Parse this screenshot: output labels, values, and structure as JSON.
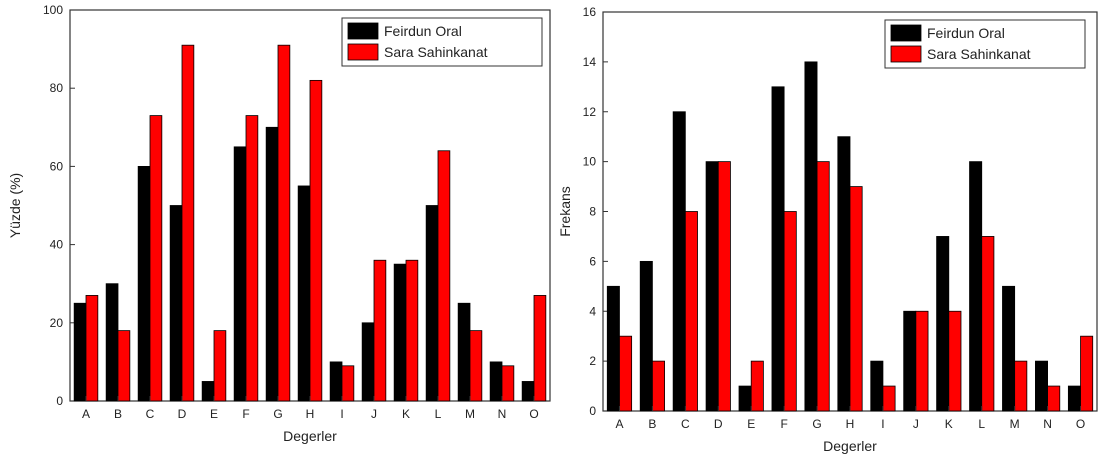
{
  "colors": {
    "series1": "#000000",
    "series2": "#ff0000",
    "axis": "#333333"
  },
  "chart_data": [
    {
      "type": "bar",
      "xlabel": "Degerler",
      "ylabel": "Yüzde (%)",
      "ylim": [
        0,
        100
      ],
      "yticks": [
        "0",
        "20",
        "40",
        "60",
        "80",
        "100"
      ],
      "categories": [
        "A",
        "B",
        "C",
        "D",
        "E",
        "F",
        "G",
        "H",
        "I",
        "J",
        "K",
        "L",
        "M",
        "N",
        "O"
      ],
      "legend_position": "top-right",
      "grid": false,
      "series": [
        {
          "name": "Feirdun Oral",
          "values": [
            25,
            30,
            60,
            50,
            5,
            65,
            70,
            55,
            10,
            20,
            35,
            50,
            25,
            10,
            5
          ]
        },
        {
          "name": "Sara Sahinkanat",
          "values": [
            27,
            18,
            73,
            91,
            18,
            73,
            91,
            82,
            9,
            36,
            36,
            64,
            18,
            9,
            27
          ]
        }
      ]
    },
    {
      "type": "bar",
      "xlabel": "Degerler",
      "ylabel": "Frekans",
      "ylim": [
        0,
        16
      ],
      "yticks": [
        "0",
        "2",
        "4",
        "6",
        "8",
        "10",
        "12",
        "14",
        "16"
      ],
      "categories": [
        "A",
        "B",
        "C",
        "D",
        "E",
        "F",
        "G",
        "H",
        "I",
        "J",
        "K",
        "L",
        "M",
        "N",
        "O"
      ],
      "legend_position": "top-right",
      "grid": false,
      "series": [
        {
          "name": "Feirdun Oral",
          "values": [
            5,
            6,
            12,
            10,
            1,
            13,
            14,
            11,
            2,
            4,
            7,
            10,
            5,
            2,
            1
          ]
        },
        {
          "name": "Sara Sahinkanat",
          "values": [
            3,
            2,
            8,
            10,
            2,
            8,
            10,
            9,
            1,
            4,
            4,
            7,
            2,
            1,
            3
          ]
        }
      ]
    }
  ]
}
